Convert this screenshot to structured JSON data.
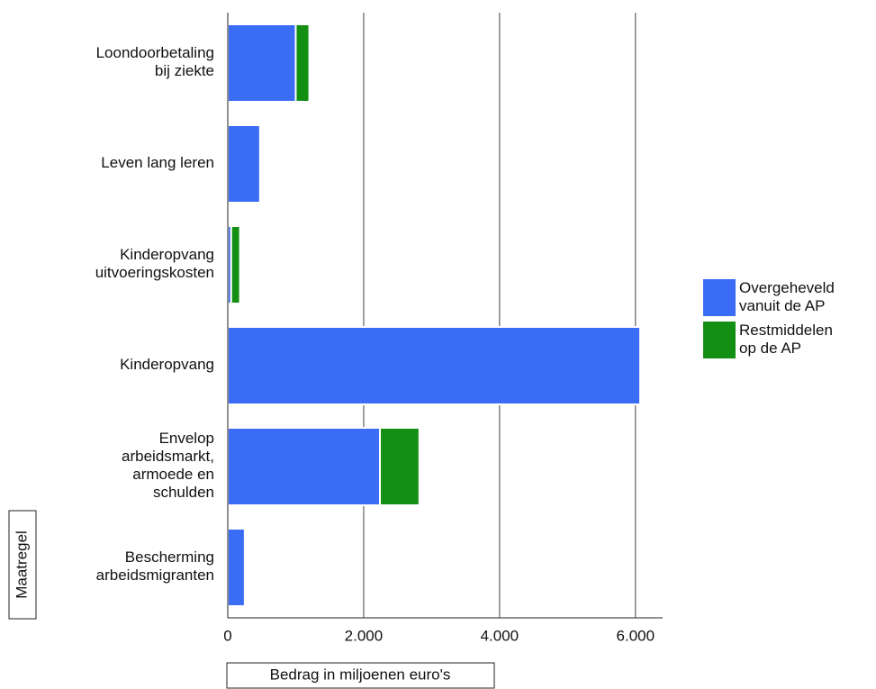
{
  "chart_data": {
    "type": "stacked-barh",
    "categories": [
      "Loondoorbetaling\nbij ziekte",
      "Leven lang leren",
      "Kinderopvang\nuitvoeringskosten",
      "Kinderopvang",
      "Envelop\narbeidsmarkt,\narmoede en\nschulden",
      "Bescherming\narbeidsmigranten"
    ],
    "series": [
      {
        "name": "Overgeheveld\nvanuit de AP",
        "color": "#3a6cf6",
        "values": [
          1000,
          475,
          50,
          6070,
          2240,
          250
        ]
      },
      {
        "name": "Restmiddelen\nop de AP",
        "color": "#138f13",
        "values": [
          200,
          0,
          130,
          0,
          580,
          0
        ]
      }
    ],
    "xlim": [
      0,
      6400
    ],
    "xticks": [
      0,
      {
        "value": 2000,
        "label": "2.000"
      },
      {
        "value": 4000,
        "label": "4.000"
      },
      {
        "value": 6000,
        "label": "6.000"
      }
    ],
    "xlabel": "Bedrag in miljoenen euro's",
    "ylabel": "Maatregel",
    "grid": true,
    "legend": "right"
  }
}
